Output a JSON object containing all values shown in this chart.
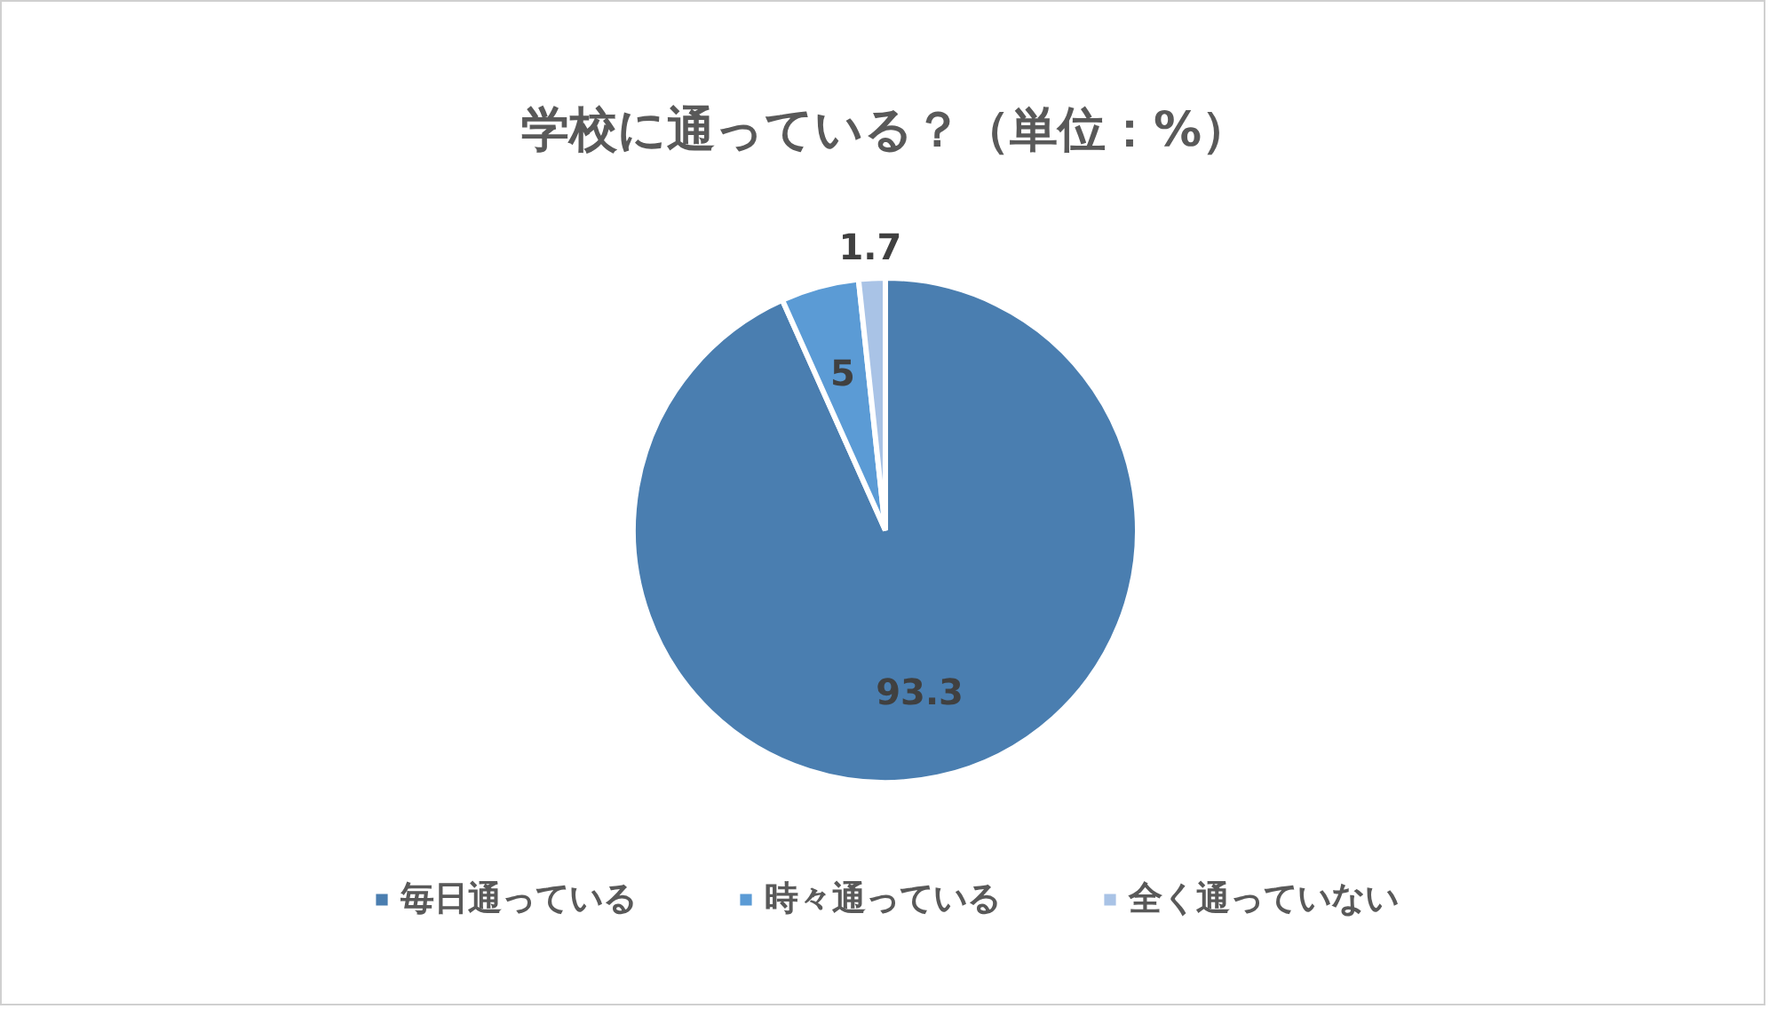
{
  "chart_data": {
    "type": "pie",
    "title": "学校に通っている？（単位：%）",
    "categories": [
      "毎日通っている",
      "時々通っている",
      "全く通っていない"
    ],
    "values": [
      93.3,
      5,
      1.7
    ],
    "colors": [
      "#4a7eb0",
      "#5b9bd5",
      "#a9c3e6"
    ],
    "data_labels": true,
    "legend": "bottom"
  }
}
